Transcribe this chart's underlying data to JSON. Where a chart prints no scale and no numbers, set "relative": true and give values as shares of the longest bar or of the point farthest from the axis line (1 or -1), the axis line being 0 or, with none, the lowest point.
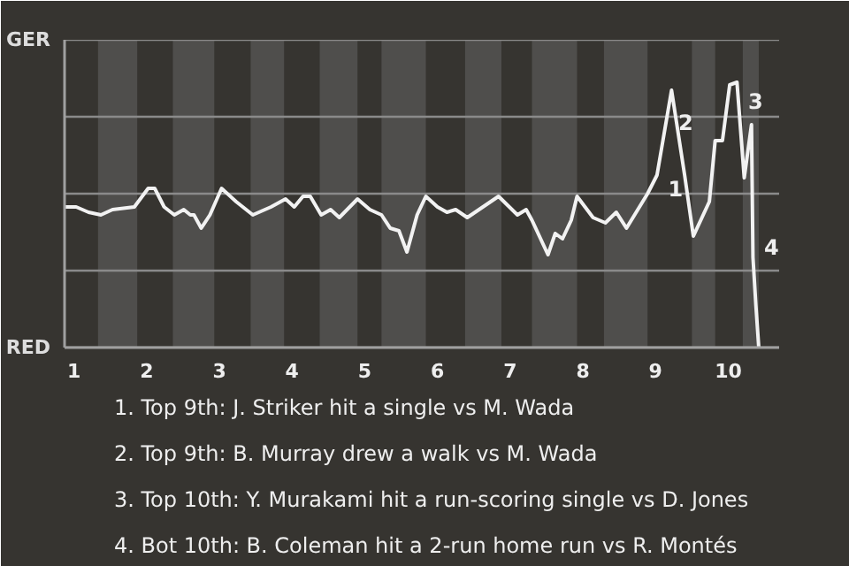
{
  "chart_data": {
    "type": "line",
    "relative": true,
    "x": [
      0.87,
      1.03,
      1.2,
      1.37,
      1.53,
      1.83,
      2.02,
      2.11,
      2.24,
      2.38,
      2.51,
      2.6,
      2.65,
      2.75,
      2.87,
      3.03,
      3.23,
      3.46,
      3.71,
      3.91,
      4.03,
      4.15,
      4.25,
      4.4,
      4.53,
      4.65,
      4.9,
      5.07,
      5.23,
      5.35,
      5.47,
      5.58,
      5.72,
      5.84,
      6.0,
      6.13,
      6.25,
      6.41,
      6.84,
      7.1,
      7.22,
      7.3,
      7.52,
      7.62,
      7.72,
      7.84,
      7.92,
      8.14,
      8.31,
      8.46,
      8.6,
      8.89,
      9.02,
      9.22,
      9.4,
      9.52,
      9.74,
      9.82,
      9.92,
      10.02,
      10.12,
      10.22,
      10.32,
      10.34,
      10.38,
      10.42
    ],
    "series": [
      {
        "color": "#f2f2f2",
        "values": [
          0.53,
          0.53,
          0.51,
          0.5,
          0.52,
          0.53,
          0.6,
          0.6,
          0.53,
          0.5,
          0.52,
          0.5,
          0.5,
          0.45,
          0.5,
          0.6,
          0.55,
          0.5,
          0.53,
          0.56,
          0.53,
          0.57,
          0.57,
          0.5,
          0.52,
          0.49,
          0.56,
          0.52,
          0.5,
          0.45,
          0.44,
          0.36,
          0.5,
          0.57,
          0.53,
          0.51,
          0.52,
          0.49,
          0.57,
          0.5,
          0.52,
          0.48,
          0.35,
          0.43,
          0.41,
          0.48,
          0.57,
          0.49,
          0.47,
          0.51,
          0.45,
          0.58,
          0.65,
          0.97,
          0.65,
          0.42,
          0.55,
          0.78,
          0.78,
          0.99,
          1,
          0.64,
          0.84,
          0.34,
          0.16,
          0
        ]
      }
    ],
    "xlim": [
      0.87,
      10.7
    ],
    "xticks": [
      1,
      2,
      3,
      4,
      5,
      6,
      7,
      8,
      9,
      10
    ],
    "marker": "none",
    "line_style": "solid",
    "ref_lines": [
      {
        "axis": "y",
        "value": 0,
        "label": "RED",
        "color": "#a0a0a0"
      },
      {
        "axis": "y",
        "value": 0.29,
        "color": "#8a8a8a"
      },
      {
        "axis": "y",
        "value": 0.58,
        "color": "#8a8a8a"
      },
      {
        "axis": "y",
        "value": 0.87,
        "color": "#8a8a8a"
      },
      {
        "axis": "y",
        "value": 1.16,
        "label": "GER",
        "color": "#8a8a8a"
      }
    ],
    "bands": [
      {
        "axis": "x",
        "from": 1.33,
        "to": 1.87,
        "color": "#4f4e4c"
      },
      {
        "axis": "x",
        "from": 2.36,
        "to": 2.93,
        "color": "#4f4e4c"
      },
      {
        "axis": "x",
        "from": 3.43,
        "to": 3.89,
        "color": "#4f4e4c"
      },
      {
        "axis": "x",
        "from": 4.38,
        "to": 4.9,
        "color": "#4f4e4c"
      },
      {
        "axis": "x",
        "from": 5.23,
        "to": 5.84,
        "color": "#4f4e4c"
      },
      {
        "axis": "x",
        "from": 6.38,
        "to": 6.88,
        "color": "#4f4e4c"
      },
      {
        "axis": "x",
        "from": 7.3,
        "to": 7.92,
        "color": "#4f4e4c"
      },
      {
        "axis": "x",
        "from": 8.29,
        "to": 8.89,
        "color": "#4f4e4c"
      },
      {
        "axis": "x",
        "from": 9.5,
        "to": 9.82,
        "color": "#4f4e4c"
      },
      {
        "axis": "x",
        "from": 10.2,
        "to": 10.42,
        "color": "#4f4e4c"
      }
    ],
    "annotations": [
      {
        "text": "1",
        "x": 9.1,
        "y": 0.6
      },
      {
        "text": "2",
        "x": 9.24,
        "y": 0.85
      },
      {
        "text": "3",
        "x": 10.2,
        "y": 0.93
      },
      {
        "text": "4",
        "x": 10.42,
        "y": 0.38
      },
      "1. Top 9th: J. Striker hit a single vs M. Wada",
      "2. Top 9th: B. Murray drew a walk vs M. Wada",
      "3. Top 10th: Y. Murakami hit a run-scoring single vs D. Jones",
      "4. Bot 10th: B. Coleman hit a 2-run home run vs R. Montés"
    ]
  }
}
